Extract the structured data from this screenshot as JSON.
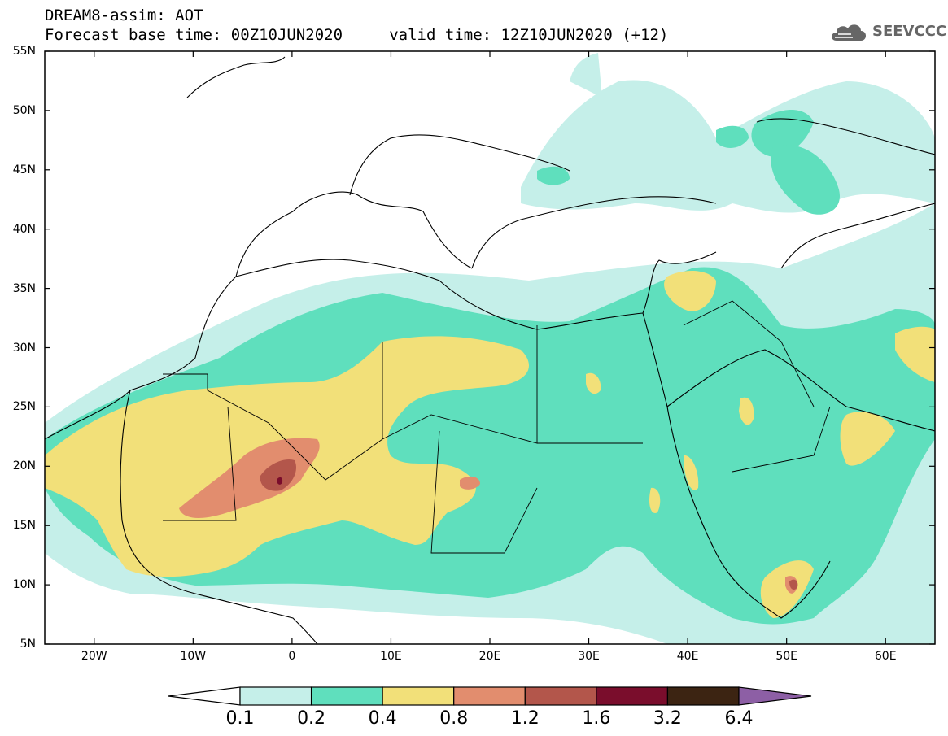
{
  "header": {
    "title_line1": "DREAM8-assim: AOT",
    "title_line2": "Forecast base time: 00Z10JUN2020     valid time: 12Z10JUN2020 (+12)"
  },
  "logo": {
    "text": "SEEVCCC",
    "icon": "cloud-icon",
    "color": "#666666"
  },
  "map": {
    "lat_labels": [
      "55N",
      "50N",
      "45N",
      "40N",
      "35N",
      "30N",
      "25N",
      "20N",
      "15N",
      "10N",
      "5N"
    ],
    "lon_labels": [
      "20W",
      "10W",
      "0",
      "10E",
      "20E",
      "30E",
      "40E",
      "50E",
      "60E"
    ],
    "lat_range": [
      5,
      55
    ],
    "lon_range": [
      -25,
      65
    ]
  },
  "colorbar": {
    "labels": [
      "0.1",
      "0.2",
      "0.4",
      "0.8",
      "1.2",
      "1.6",
      "3.2",
      "6.4"
    ],
    "colors": [
      "#ffffff",
      "#c5efe9",
      "#5fdfbd",
      "#f2e079",
      "#e28d6e",
      "#b3564b",
      "#7a0d2c",
      "#3c2412",
      "#8d5fa5"
    ]
  }
}
